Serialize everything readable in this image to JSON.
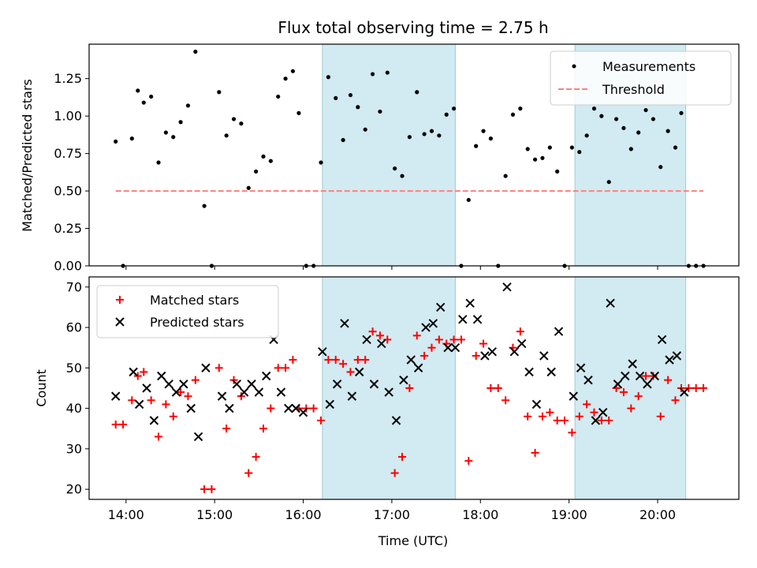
{
  "chart_data": [
    {
      "type": "scatter",
      "title": "Flux total observing time = 2.75 h",
      "xlabel": "",
      "ylabel": "Matched/Predicted stars",
      "xlim": [
        "13:35",
        "20:55"
      ],
      "ylim": [
        0,
        1.48
      ],
      "yticks": [
        0.0,
        0.25,
        0.5,
        0.75,
        1.0,
        1.25
      ],
      "yticklabels": [
        "0.00",
        "0.25",
        "0.50",
        "0.75",
        "1.00",
        "1.25"
      ],
      "xticks": [
        "14:00",
        "15:00",
        "16:00",
        "17:00",
        "18:00",
        "19:00",
        "20:00"
      ],
      "shaded_regions": [
        [
          "16:13",
          "17:43"
        ],
        [
          "19:04",
          "20:19"
        ]
      ],
      "shade_color": "#add8e6",
      "legend_position": "upper right",
      "series": [
        {
          "name": "Measurements",
          "style": "dot",
          "color": "#000000",
          "x": [
            "13:53",
            "13:58",
            "14:04",
            "14:08",
            "14:12",
            "14:17",
            "14:22",
            "14:27",
            "14:32",
            "14:37",
            "14:42",
            "14:47",
            "14:53",
            "14:58",
            "15:03",
            "15:08",
            "15:13",
            "15:18",
            "15:23",
            "15:28",
            "15:33",
            "15:38",
            "15:43",
            "15:48",
            "15:53",
            "15:57",
            "16:02",
            "16:07",
            "16:12",
            "16:17",
            "16:22",
            "16:27",
            "16:32",
            "16:37",
            "16:42",
            "16:47",
            "16:52",
            "16:57",
            "17:02",
            "17:07",
            "17:12",
            "17:17",
            "17:22",
            "17:27",
            "17:32",
            "17:37",
            "17:42",
            "17:47",
            "17:52",
            "17:57",
            "18:02",
            "18:07",
            "18:12",
            "18:17",
            "18:22",
            "18:27",
            "18:32",
            "18:37",
            "18:42",
            "18:47",
            "18:52",
            "18:57",
            "19:02",
            "19:07",
            "19:12",
            "19:17",
            "19:22",
            "19:27",
            "19:32",
            "19:37",
            "19:42",
            "19:47",
            "19:52",
            "19:57",
            "20:02",
            "20:07",
            "20:12",
            "20:16",
            "20:21",
            "20:26",
            "20:31"
          ],
          "y": [
            0.83,
            0.0,
            0.85,
            1.17,
            1.09,
            1.13,
            0.69,
            0.89,
            0.86,
            0.96,
            1.07,
            1.43,
            0.4,
            0.0,
            1.16,
            0.87,
            0.98,
            0.95,
            0.52,
            0.63,
            0.73,
            0.7,
            1.13,
            1.25,
            1.3,
            1.02,
            0.0,
            0.0,
            0.69,
            1.26,
            1.12,
            0.84,
            1.14,
            1.06,
            0.91,
            1.28,
            1.03,
            1.29,
            0.65,
            0.6,
            0.86,
            1.16,
            0.88,
            0.9,
            0.87,
            1.01,
            1.05,
            0.0,
            0.44,
            0.8,
            0.9,
            0.85,
            0.0,
            0.6,
            1.01,
            1.05,
            0.78,
            0.71,
            0.72,
            0.79,
            0.63,
            0.0,
            0.79,
            0.76,
            0.87,
            1.05,
            1.0,
            0.56,
            0.98,
            0.92,
            0.78,
            0.89,
            1.04,
            0.98,
            0.66,
            0.9,
            0.79,
            1.02,
            0.0,
            0.0,
            0.0
          ]
        },
        {
          "name": "Threshold",
          "style": "dashed",
          "color": "#ff7f7f",
          "x": [
            "13:53",
            "20:31"
          ],
          "y": [
            0.5,
            0.5
          ]
        }
      ]
    },
    {
      "type": "scatter",
      "title": "",
      "xlabel": "Time (UTC)",
      "ylabel": "Count",
      "xlim": [
        "13:35",
        "20:55"
      ],
      "ylim": [
        17.5,
        72.5
      ],
      "yticks": [
        20,
        30,
        40,
        50,
        60,
        70
      ],
      "yticklabels": [
        "20",
        "30",
        "40",
        "50",
        "60",
        "70"
      ],
      "xticks": [
        "14:00",
        "15:00",
        "16:00",
        "17:00",
        "18:00",
        "19:00",
        "20:00"
      ],
      "shaded_regions": [
        [
          "16:13",
          "17:43"
        ],
        [
          "19:04",
          "20:19"
        ]
      ],
      "shade_color": "#add8e6",
      "legend_position": "upper left",
      "series": [
        {
          "name": "Matched stars",
          "marker": "plus",
          "color": "#ff0000",
          "x": [
            "13:53",
            "13:58",
            "14:04",
            "14:08",
            "14:12",
            "14:17",
            "14:22",
            "14:27",
            "14:32",
            "14:37",
            "14:42",
            "14:47",
            "14:53",
            "14:58",
            "15:03",
            "15:08",
            "15:13",
            "15:18",
            "15:23",
            "15:28",
            "15:33",
            "15:38",
            "15:43",
            "15:48",
            "15:53",
            "15:57",
            "16:02",
            "16:07",
            "16:12",
            "16:17",
            "16:22",
            "16:27",
            "16:32",
            "16:37",
            "16:42",
            "16:47",
            "16:52",
            "16:57",
            "17:02",
            "17:07",
            "17:12",
            "17:17",
            "17:22",
            "17:27",
            "17:32",
            "17:37",
            "17:42",
            "17:47",
            "17:52",
            "17:57",
            "18:02",
            "18:07",
            "18:12",
            "18:17",
            "18:22",
            "18:27",
            "18:32",
            "18:37",
            "18:42",
            "18:47",
            "18:52",
            "18:57",
            "19:02",
            "19:07",
            "19:12",
            "19:17",
            "19:22",
            "19:27",
            "19:32",
            "19:37",
            "19:42",
            "19:47",
            "19:52",
            "19:57",
            "20:02",
            "20:07",
            "20:12",
            "20:16",
            "20:21",
            "20:26",
            "20:31"
          ],
          "y": [
            36,
            36,
            42,
            48,
            49,
            42,
            33,
            41,
            38,
            44,
            43,
            47,
            20,
            20,
            50,
            35,
            47,
            43,
            24,
            28,
            35,
            40,
            50,
            50,
            52,
            40,
            40,
            40,
            37,
            52,
            52,
            51,
            49,
            52,
            52,
            59,
            58,
            57,
            24,
            28,
            45,
            58,
            53,
            55,
            57,
            56,
            57,
            57,
            27,
            53,
            56,
            45,
            45,
            42,
            55,
            59,
            38,
            29,
            38,
            39,
            37,
            37,
            34,
            38,
            41,
            39,
            37,
            37,
            45,
            44,
            40,
            43,
            48,
            48,
            38,
            47,
            42,
            45,
            45,
            45,
            45
          ]
        },
        {
          "name": "Predicted stars",
          "marker": "x",
          "color": "#000000",
          "x": [
            "13:53",
            "14:05",
            "14:09",
            "14:14",
            "14:19",
            "14:24",
            "14:29",
            "14:34",
            "14:39",
            "14:44",
            "14:49",
            "14:54",
            "15:05",
            "15:10",
            "15:15",
            "15:20",
            "15:25",
            "15:30",
            "15:35",
            "15:40",
            "15:45",
            "15:50",
            "15:55",
            "16:00",
            "16:13",
            "16:18",
            "16:23",
            "16:28",
            "16:33",
            "16:38",
            "16:43",
            "16:48",
            "16:53",
            "16:58",
            "17:03",
            "17:08",
            "17:13",
            "17:18",
            "17:23",
            "17:28",
            "17:33",
            "17:38",
            "17:43",
            "17:48",
            "17:53",
            "17:58",
            "18:03",
            "18:08",
            "18:18",
            "18:23",
            "18:28",
            "18:33",
            "18:38",
            "18:43",
            "18:48",
            "18:53",
            "19:03",
            "19:08",
            "19:13",
            "19:18",
            "19:23",
            "19:28",
            "19:33",
            "19:38",
            "19:43",
            "19:48",
            "19:53",
            "19:58",
            "20:03",
            "20:08",
            "20:13",
            "20:18"
          ],
          "y": [
            43,
            49,
            41,
            45,
            37,
            48,
            46,
            44,
            46,
            40,
            33,
            50,
            43,
            40,
            46,
            44,
            46,
            44,
            48,
            57,
            44,
            40,
            40,
            39,
            54,
            41,
            46,
            61,
            43,
            49,
            57,
            46,
            56,
            44,
            37,
            47,
            52,
            50,
            60,
            61,
            65,
            55,
            55,
            62,
            66,
            62,
            53,
            54,
            70,
            54,
            56,
            49,
            41,
            53,
            49,
            59,
            43,
            50,
            47,
            37,
            39,
            66,
            46,
            48,
            51,
            48,
            46,
            48,
            57,
            52,
            53,
            44
          ]
        }
      ]
    }
  ]
}
